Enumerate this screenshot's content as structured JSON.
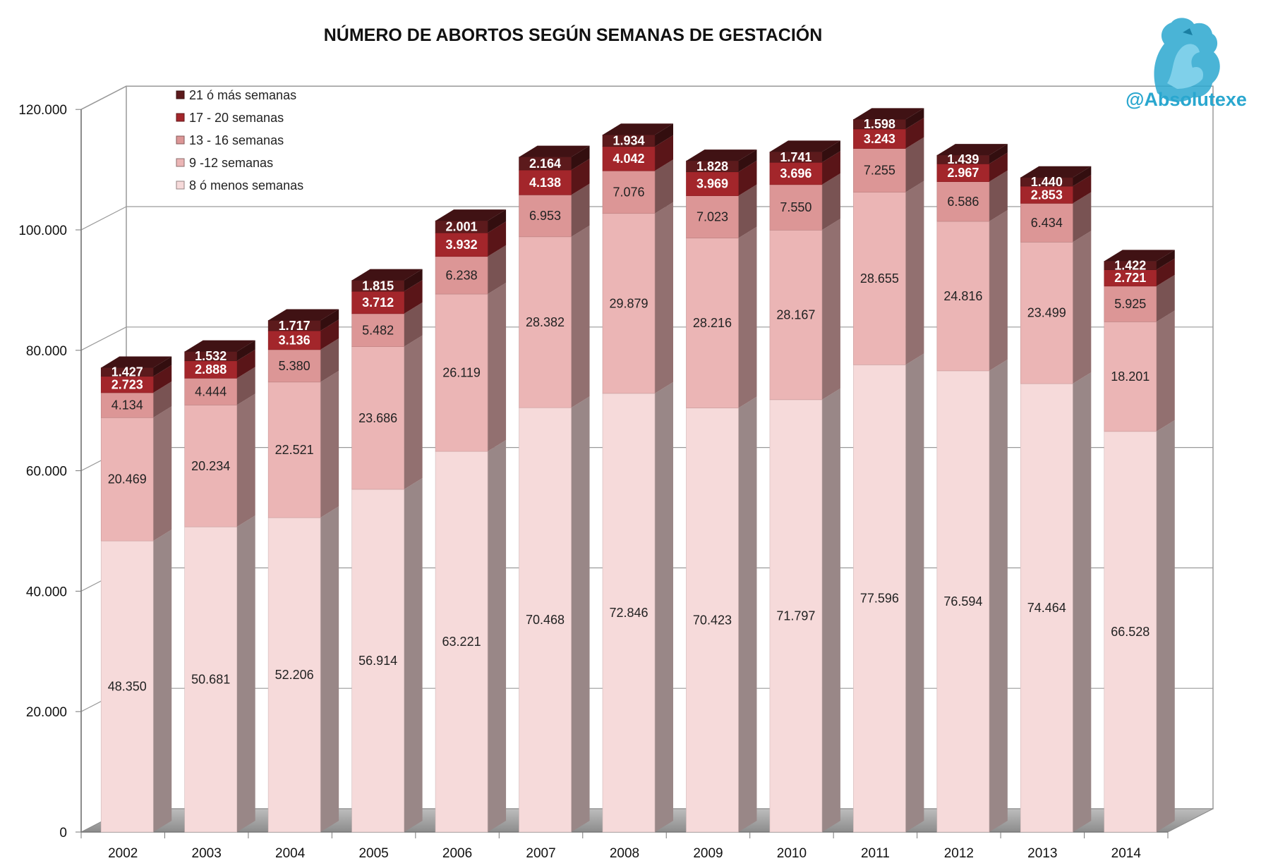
{
  "chart_data": {
    "type": "bar",
    "stacked": true,
    "three_d": true,
    "title": "NÚMERO DE ABORTOS SEGÚN SEMANAS DE GESTACIÓN",
    "categories": [
      "2002",
      "2003",
      "2004",
      "2005",
      "2006",
      "2007",
      "2008",
      "2009",
      "2010",
      "2011",
      "2012",
      "2013",
      "2014"
    ],
    "ylim": [
      0,
      120000
    ],
    "y_ticks": [
      "0",
      "20.000",
      "40.000",
      "60.000",
      "80.000",
      "100.000",
      "120.000"
    ],
    "grid": true,
    "legend_position": "top-left",
    "series": [
      {
        "name": "8 ó menos semanas",
        "color": "#f6dada",
        "values": [
          48350,
          50681,
          52206,
          56914,
          63221,
          70468,
          72846,
          70423,
          71797,
          77596,
          76594,
          74464,
          66528
        ],
        "labels": [
          "48.350",
          "50.681",
          "52.206",
          "56.914",
          "63.221",
          "70.468",
          "72.846",
          "70.423",
          "71.797",
          "77.596",
          "76.594",
          "74.464",
          "66.528"
        ]
      },
      {
        "name": "9 -12 semanas",
        "color": "#ebb5b5",
        "values": [
          20469,
          20234,
          22521,
          23686,
          26119,
          28382,
          29879,
          28216,
          28167,
          28655,
          24816,
          23499,
          18201
        ],
        "labels": [
          "20.469",
          "20.234",
          "22.521",
          "23.686",
          "26.119",
          "28.382",
          "29.879",
          "28.216",
          "28.167",
          "28.655",
          "24.816",
          "23.499",
          "18.201"
        ]
      },
      {
        "name": "13 - 16 semanas",
        "color": "#dc9696",
        "values": [
          4134,
          4444,
          5380,
          5482,
          6238,
          6953,
          7076,
          7023,
          7550,
          7255,
          6586,
          6434,
          5925
        ],
        "labels": [
          "4.134",
          "4.444",
          "5.380",
          "5.482",
          "6.238",
          "6.953",
          "7.076",
          "7.023",
          "7.550",
          "7.255",
          "6.586",
          "6.434",
          "5.925"
        ]
      },
      {
        "name": "17 - 20 semanas",
        "color": "#a3262b",
        "values": [
          2723,
          2888,
          3136,
          3712,
          3932,
          4138,
          4042,
          3969,
          3696,
          3243,
          2967,
          2853,
          2721
        ],
        "labels": [
          "2.723",
          "2.888",
          "3.136",
          "3.712",
          "3.932",
          "4.138",
          "4.042",
          "3.969",
          "3.696",
          "3.243",
          "2.967",
          "2.853",
          "2.721"
        ]
      },
      {
        "name": "21 ó más semanas",
        "color": "#5c1a1c",
        "values": [
          1427,
          1532,
          1717,
          1815,
          2001,
          2164,
          1934,
          1828,
          1741,
          1598,
          1439,
          1440,
          1422
        ],
        "labels": [
          "1.427",
          "1.532",
          "1.717",
          "1.815",
          "2.001",
          "2.164",
          "1.934",
          "1.828",
          "1.741",
          "1.598",
          "1.439",
          "1.440",
          "1.422"
        ]
      }
    ]
  },
  "watermark": {
    "handle": "@Absolutexe",
    "logo_icon": "griffin-logo-icon",
    "accent_color": "#2aa7cf"
  }
}
